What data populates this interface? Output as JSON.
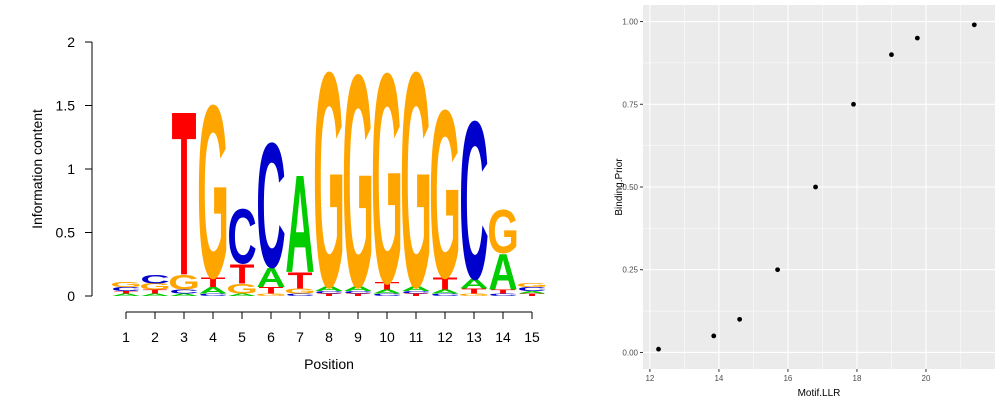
{
  "chart_data": [
    {
      "type": "sequence-logo",
      "xlabel": "Position",
      "ylabel": "Information content",
      "ylim": [
        0,
        2
      ],
      "y_ticks": [
        "0",
        "0.5",
        "1",
        "1.5",
        "2"
      ],
      "positions": [
        "1",
        "2",
        "3",
        "4",
        "5",
        "6",
        "7",
        "8",
        "9",
        "10",
        "11",
        "12",
        "13",
        "14",
        "15"
      ],
      "letter_colors": {
        "A": "#00cc00",
        "C": "#0000cc",
        "G": "#ffa500",
        "T": "#ff0000"
      },
      "stacks": [
        [
          {
            "letter": "A",
            "height": 0.02
          },
          {
            "letter": "T",
            "height": 0.02
          },
          {
            "letter": "C",
            "height": 0.03
          },
          {
            "letter": "G",
            "height": 0.04
          }
        ],
        [
          {
            "letter": "A",
            "height": 0.02
          },
          {
            "letter": "T",
            "height": 0.03
          },
          {
            "letter": "G",
            "height": 0.05
          },
          {
            "letter": "C",
            "height": 0.07
          }
        ],
        [
          {
            "letter": "A",
            "height": 0.02
          },
          {
            "letter": "C",
            "height": 0.03
          },
          {
            "letter": "G",
            "height": 0.12
          },
          {
            "letter": "T",
            "height": 1.33
          }
        ],
        [
          {
            "letter": "C",
            "height": 0.02
          },
          {
            "letter": "A",
            "height": 0.05
          },
          {
            "letter": "T",
            "height": 0.08
          },
          {
            "letter": "G",
            "height": 1.4
          }
        ],
        [
          {
            "letter": "A",
            "height": 0.02
          },
          {
            "letter": "G",
            "height": 0.08
          },
          {
            "letter": "T",
            "height": 0.16
          },
          {
            "letter": "C",
            "height": 0.44
          }
        ],
        [
          {
            "letter": "G",
            "height": 0.02
          },
          {
            "letter": "T",
            "height": 0.05
          },
          {
            "letter": "A",
            "height": 0.16
          },
          {
            "letter": "C",
            "height": 1.01
          }
        ],
        [
          {
            "letter": "C",
            "height": 0.02
          },
          {
            "letter": "G",
            "height": 0.04
          },
          {
            "letter": "T",
            "height": 0.13
          },
          {
            "letter": "A",
            "height": 0.79
          }
        ],
        [
          {
            "letter": "T",
            "height": 0.02
          },
          {
            "letter": "C",
            "height": 0.02
          },
          {
            "letter": "A",
            "height": 0.04
          },
          {
            "letter": "G",
            "height": 1.74
          }
        ],
        [
          {
            "letter": "T",
            "height": 0.02
          },
          {
            "letter": "C",
            "height": 0.02
          },
          {
            "letter": "A",
            "height": 0.04
          },
          {
            "letter": "G",
            "height": 1.72
          }
        ],
        [
          {
            "letter": "C",
            "height": 0.02
          },
          {
            "letter": "A",
            "height": 0.03
          },
          {
            "letter": "T",
            "height": 0.06
          },
          {
            "letter": "G",
            "height": 1.7
          }
        ],
        [
          {
            "letter": "T",
            "height": 0.02
          },
          {
            "letter": "C",
            "height": 0.02
          },
          {
            "letter": "A",
            "height": 0.04
          },
          {
            "letter": "G",
            "height": 1.74
          }
        ],
        [
          {
            "letter": "C",
            "height": 0.02
          },
          {
            "letter": "A",
            "height": 0.03
          },
          {
            "letter": "T",
            "height": 0.1
          },
          {
            "letter": "G",
            "height": 1.36
          }
        ],
        [
          {
            "letter": "G",
            "height": 0.02
          },
          {
            "letter": "T",
            "height": 0.04
          },
          {
            "letter": "A",
            "height": 0.08
          },
          {
            "letter": "C",
            "height": 1.28
          }
        ],
        [
          {
            "letter": "C",
            "height": 0.02
          },
          {
            "letter": "T",
            "height": 0.03
          },
          {
            "letter": "A",
            "height": 0.29
          },
          {
            "letter": "G",
            "height": 0.35
          }
        ],
        [
          {
            "letter": "T",
            "height": 0.02
          },
          {
            "letter": "A",
            "height": 0.02
          },
          {
            "letter": "C",
            "height": 0.03
          },
          {
            "letter": "G",
            "height": 0.03
          }
        ]
      ]
    },
    {
      "type": "scatter",
      "xlabel": "Motif.LLR",
      "ylabel": "Binding.Prior",
      "xlim": [
        11.8,
        22.0
      ],
      "ylim": [
        -0.05,
        1.05
      ],
      "x_ticks": [
        12,
        14,
        16,
        18,
        20
      ],
      "y_ticks": [
        "0.00",
        "0.25",
        "0.50",
        "0.75",
        "1.00"
      ],
      "grid": true,
      "points": [
        {
          "x": 12.25,
          "y": 0.01
        },
        {
          "x": 13.85,
          "y": 0.05
        },
        {
          "x": 14.6,
          "y": 0.1
        },
        {
          "x": 15.7,
          "y": 0.25
        },
        {
          "x": 16.8,
          "y": 0.5
        },
        {
          "x": 17.9,
          "y": 0.75
        },
        {
          "x": 19.0,
          "y": 0.9
        },
        {
          "x": 19.75,
          "y": 0.95
        },
        {
          "x": 21.4,
          "y": 0.99
        }
      ],
      "colors": {
        "panel_background": "#ebebeb",
        "grid": "#ffffff",
        "point": "#000000"
      }
    }
  ]
}
